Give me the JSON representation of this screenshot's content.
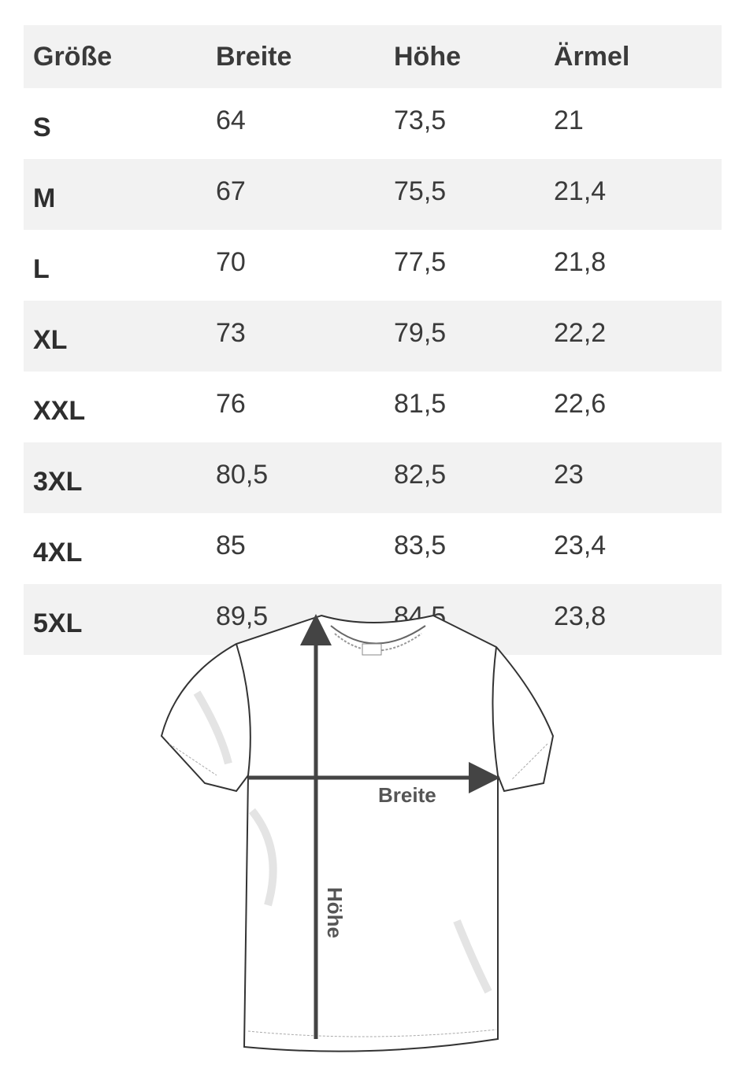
{
  "table": {
    "headers": [
      "Größe",
      "Breite",
      "Höhe",
      "Ärmel"
    ],
    "rows": [
      [
        "S",
        "64",
        "73,5",
        "21"
      ],
      [
        "M",
        "67",
        "75,5",
        "21,4"
      ],
      [
        "L",
        "70",
        "77,5",
        "21,8"
      ],
      [
        "XL",
        "73",
        "79,5",
        "22,2"
      ],
      [
        "XXL",
        "76",
        "81,5",
        "22,6"
      ],
      [
        "3XL",
        "80,5",
        "82,5",
        "23"
      ],
      [
        "4XL",
        "85",
        "83,5",
        "23,4"
      ],
      [
        "5XL",
        "89,5",
        "84,5",
        "23,8"
      ]
    ]
  },
  "diagram": {
    "width_label": "Breite",
    "height_label": "Höhe"
  }
}
